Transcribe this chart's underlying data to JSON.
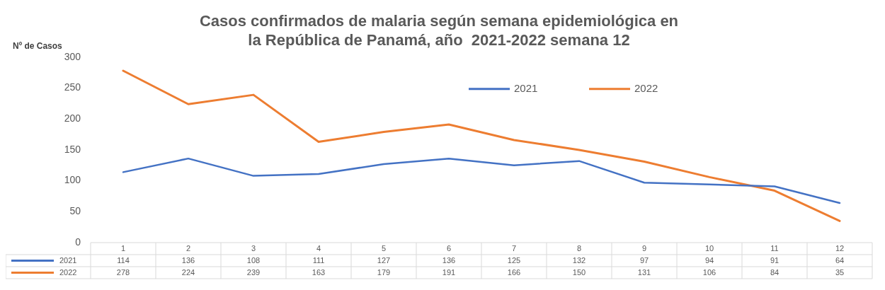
{
  "chart_data": {
    "type": "line",
    "title": "Casos confirmados de malaria según semana epidemiológica en\nla República de Panamá, año  2021-2022 semana 12",
    "ylabel": "Nº de Casos",
    "categories": [
      "1",
      "2",
      "3",
      "4",
      "5",
      "6",
      "7",
      "8",
      "9",
      "10",
      "11",
      "12"
    ],
    "series": [
      {
        "name": "2021",
        "color": "#4472c4",
        "values": [
          114,
          136,
          108,
          111,
          127,
          136,
          125,
          132,
          97,
          94,
          91,
          64
        ]
      },
      {
        "name": "2022",
        "color": "#ed7d31",
        "values": [
          278,
          224,
          239,
          163,
          179,
          191,
          166,
          150,
          131,
          106,
          84,
          35
        ]
      }
    ],
    "ylim": [
      0,
      300
    ],
    "yticks": [
      0,
      50,
      100,
      150,
      200,
      250,
      300
    ],
    "grid": false,
    "legend": "top right",
    "data_labels": true,
    "marker": "none"
  }
}
